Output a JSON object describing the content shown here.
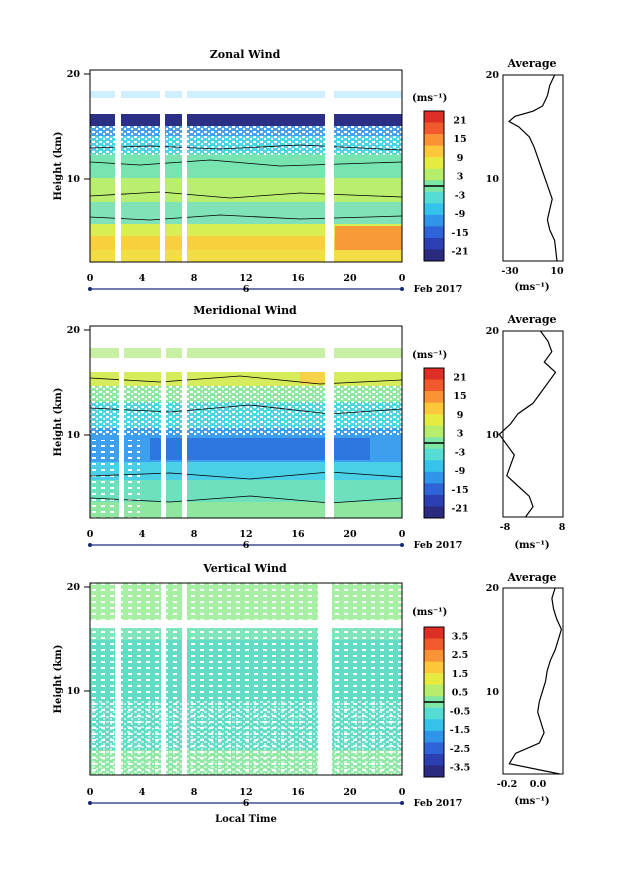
{
  "figure": {
    "xlabel": "Local Time",
    "date_label": "Feb 2017",
    "day_label": "6",
    "unit_label": "(ms⁻¹)"
  },
  "chart_data": [
    {
      "type": "heatmap",
      "title": "Zonal Wind",
      "xlabel": "Local Time",
      "ylabel": "Height (km)",
      "unit": "(ms⁻¹)",
      "x_ticks": [
        "0",
        "4",
        "8",
        "12",
        "16",
        "20",
        "0"
      ],
      "y_ticks": [
        "20",
        "10"
      ],
      "ylim": [
        2,
        20
      ],
      "xlim": [
        0,
        24
      ],
      "data_gaps_hours": [
        [
          2.0,
          2.4
        ],
        [
          5.6,
          5.9
        ],
        [
          7.4,
          7.7
        ],
        [
          18.2,
          18.8
        ]
      ],
      "colorbar": {
        "ticks": [
          "21",
          "15",
          "9",
          "3",
          "-3",
          "-9",
          "-15",
          "-21"
        ],
        "range": [
          -24,
          24
        ],
        "colors": [
          "#2a2a7e",
          "#2b3fb3",
          "#2f64d9",
          "#2f95e8",
          "#35c3ec",
          "#54dcd5",
          "#7fe7a6",
          "#b6ee6c",
          "#e6ec3f",
          "#fcc83a",
          "#fa9236",
          "#f25a2e",
          "#de2e25"
        ]
      },
      "average_profile": {
        "title": "Average",
        "xlabel": "(ms⁻¹)",
        "x_ticks": [
          "-30",
          "10"
        ],
        "xlim": [
          -35,
          15
        ],
        "y_ticks": [
          "20",
          "10"
        ],
        "height_km": [
          2,
          3,
          4,
          5,
          6,
          7,
          8,
          9,
          10,
          11,
          12,
          13,
          14,
          15,
          15.5,
          16,
          16.5,
          17,
          18,
          19,
          20
        ],
        "values": [
          10,
          9,
          8,
          4,
          2,
          4,
          6,
          3,
          0,
          -3,
          -6,
          -9,
          -13,
          -22,
          -30,
          -25,
          -10,
          -2,
          2,
          4,
          8
        ]
      }
    },
    {
      "type": "heatmap",
      "title": "Meridional Wind",
      "xlabel": "Local Time",
      "ylabel": "Height (km)",
      "unit": "(ms⁻¹)",
      "x_ticks": [
        "0",
        "4",
        "8",
        "12",
        "16",
        "20",
        "0"
      ],
      "y_ticks": [
        "20",
        "10"
      ],
      "ylim": [
        2,
        20
      ],
      "xlim": [
        0,
        24
      ],
      "data_gaps_hours": [
        [
          2.3,
          2.6
        ],
        [
          5.7,
          6.0
        ],
        [
          7.4,
          7.7
        ],
        [
          18.2,
          18.8
        ]
      ],
      "colorbar": {
        "ticks": [
          "21",
          "15",
          "9",
          "3",
          "-3",
          "-9",
          "-15",
          "-21"
        ],
        "range": [
          -24,
          24
        ],
        "colors": [
          "#2a2a7e",
          "#2b3fb3",
          "#2f64d9",
          "#2f95e8",
          "#35c3ec",
          "#54dcd5",
          "#7fe7a6",
          "#b6ee6c",
          "#e6ec3f",
          "#fcc83a",
          "#fa9236",
          "#f25a2e",
          "#de2e25"
        ]
      },
      "average_profile": {
        "title": "Average",
        "xlabel": "(ms⁻¹)",
        "x_ticks": [
          "-8",
          "8"
        ],
        "xlim": [
          -8,
          8
        ],
        "y_ticks": [
          "20",
          "10"
        ],
        "height_km": [
          2,
          3,
          4,
          5,
          6,
          7,
          8,
          9,
          10,
          11,
          12,
          13,
          14,
          15,
          16,
          17,
          18,
          19,
          20
        ],
        "values": [
          -2,
          0,
          -1,
          -4,
          -7,
          -6,
          -5,
          -7,
          -9,
          -6,
          -4,
          0,
          2,
          4,
          6,
          3,
          5,
          4,
          2
        ]
      }
    },
    {
      "type": "heatmap",
      "title": "Vertical Wind",
      "xlabel": "Local Time",
      "ylabel": "Height (km)",
      "unit": "(ms⁻¹)",
      "x_ticks": [
        "0",
        "4",
        "8",
        "12",
        "16",
        "20",
        "0"
      ],
      "y_ticks": [
        "20",
        "10"
      ],
      "ylim": [
        2,
        20
      ],
      "xlim": [
        0,
        24
      ],
      "data_gaps_hours": [
        [
          2.0,
          2.4
        ],
        [
          5.7,
          6.0
        ],
        [
          7.4,
          7.7
        ],
        [
          17.6,
          18.5
        ]
      ],
      "colorbar": {
        "ticks": [
          "3.5",
          "2.5",
          "1.5",
          "0.5",
          "-0.5",
          "-1.5",
          "-2.5",
          "-3.5"
        ],
        "range": [
          -4,
          4
        ],
        "colors": [
          "#2a2a7e",
          "#2b3fb3",
          "#2f64d9",
          "#2f95e8",
          "#35c3ec",
          "#54dcd5",
          "#7fe7a6",
          "#b6ee6c",
          "#e6ec3f",
          "#fcc83a",
          "#fa9236",
          "#f25a2e",
          "#de2e25"
        ]
      },
      "average_profile": {
        "title": "Average",
        "xlabel": "(ms⁻¹)",
        "x_ticks": [
          "-0.2",
          "0.0"
        ],
        "xlim": [
          -0.28,
          0.1
        ],
        "y_ticks": [
          "20",
          "10"
        ],
        "height_km": [
          2,
          3,
          4,
          5,
          6,
          7,
          8,
          9,
          10,
          11,
          12,
          13,
          14,
          15,
          16,
          17,
          18,
          19,
          20
        ],
        "values": [
          0.08,
          -0.24,
          -0.2,
          -0.05,
          -0.02,
          -0.04,
          -0.06,
          -0.05,
          -0.03,
          -0.01,
          0.0,
          0.02,
          0.05,
          0.07,
          0.09,
          0.06,
          0.04,
          0.03,
          0.05
        ]
      }
    }
  ]
}
